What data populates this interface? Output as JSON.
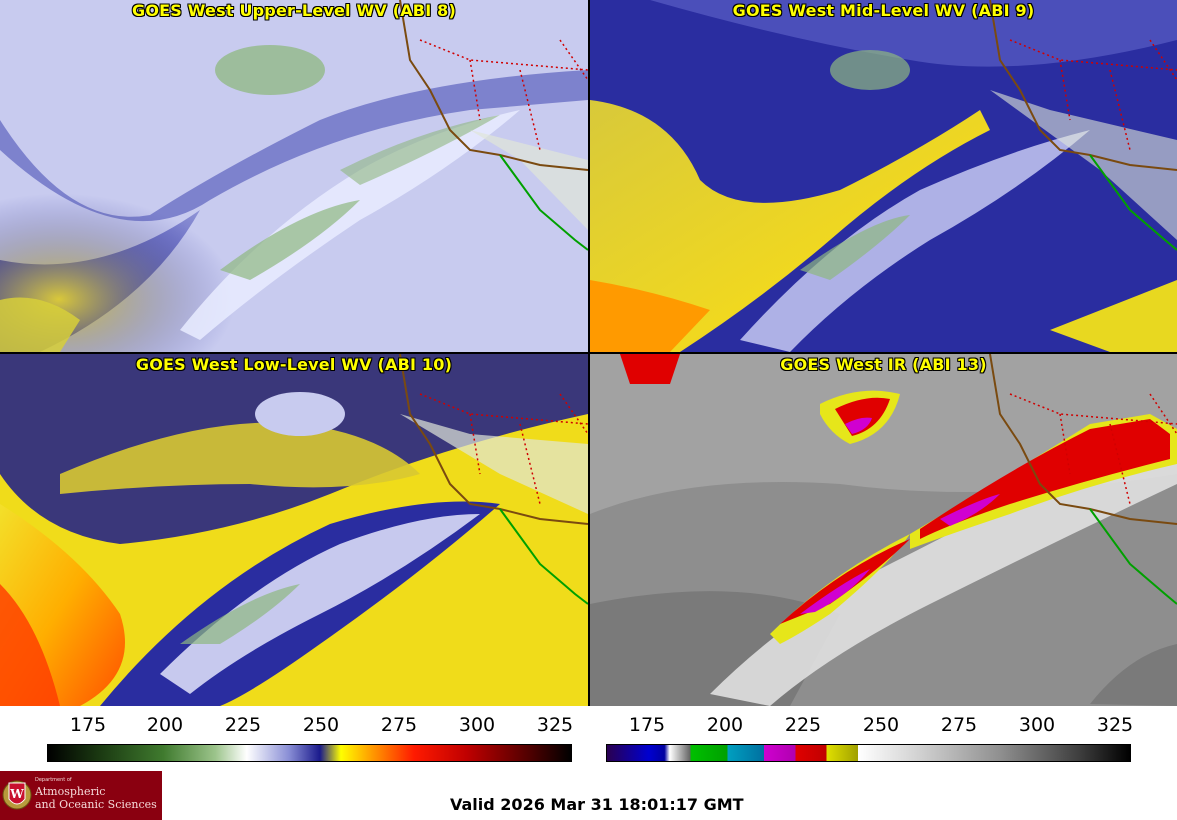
{
  "panels": {
    "upper_wv": {
      "title": "GOES West Upper-Level WV (ABI 8)"
    },
    "mid_wv": {
      "title": "GOES West Mid-Level WV (ABI 9)"
    },
    "low_wv": {
      "title": "GOES West Low-Level WV (ABI 10)"
    },
    "ir": {
      "title": "GOES West IR (ABI 13)"
    }
  },
  "colorbars": {
    "wv_ticks": [
      "175",
      "200",
      "225",
      "250",
      "275",
      "300",
      "325"
    ],
    "ir_ticks": [
      "175",
      "200",
      "225",
      "250",
      "275",
      "300",
      "325"
    ]
  },
  "logo": {
    "small_text": "Department of",
    "line1": "Atmospheric",
    "line2": "and Oceanic Sciences",
    "seal_letter": "W"
  },
  "footer": {
    "valid_time": "Valid 2026 Mar 31 18:01:17 GMT"
  },
  "colors": {
    "title_text": "#ffff00",
    "wv_palette": [
      "#000000",
      "#1b3a12",
      "#3f7a2e",
      "#9cc48b",
      "#ffffff",
      "#8a8fd6",
      "#1a1a8c",
      "#ffff00",
      "#ff9a00",
      "#ff1a00",
      "#a00000",
      "#000000"
    ],
    "ir_palette": [
      "#2a0050",
      "#0000d0",
      "#ffffff",
      "#00c000",
      "#00a0c0",
      "#d000d0",
      "#e00000",
      "#e0e000",
      "#ffffff",
      "#000000"
    ]
  }
}
